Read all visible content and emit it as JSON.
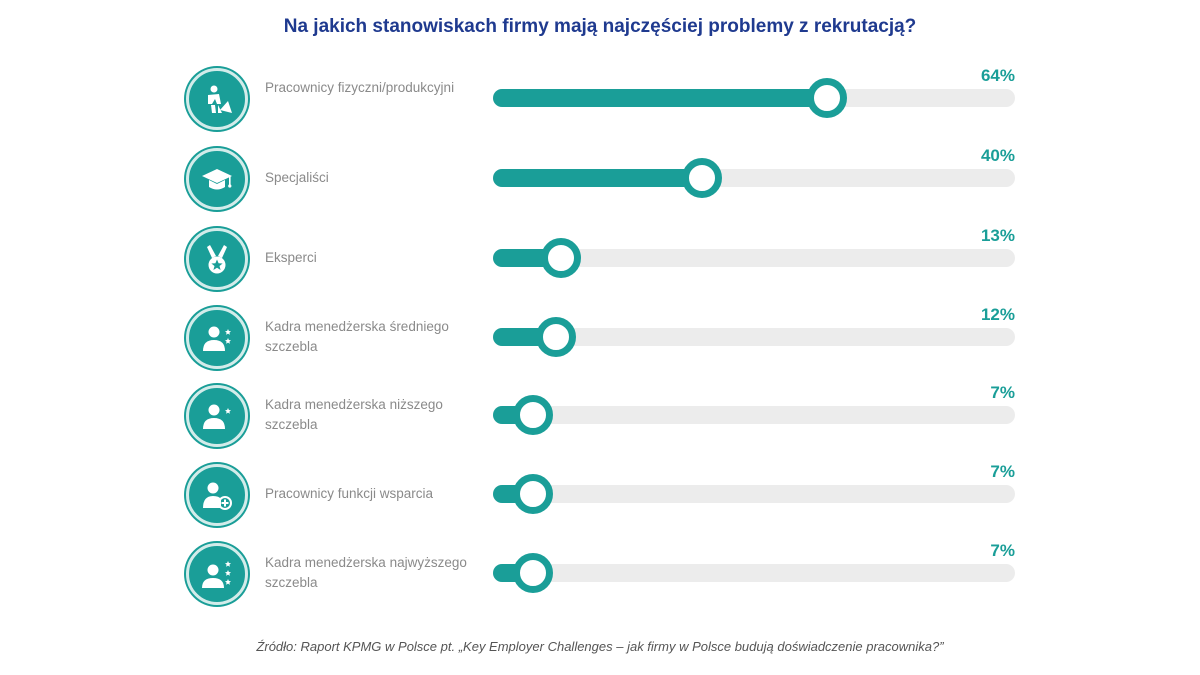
{
  "colors": {
    "accent": "#1a9e98",
    "title": "#1f3a8f",
    "track": "#ececec",
    "label": "#8a8a8a"
  },
  "chart_data": {
    "type": "bar",
    "orientation": "horizontal",
    "title": "Na jakich stanowiskach firmy mają najczęściej problemy z rekrutacją?",
    "categories": [
      "Pracownicy fizyczni/produkcyjni",
      "Specjaliści",
      "Eksperci",
      "Kadra menedżerska średniego szczebla",
      "Kadra menedżerska niższego szczebla",
      "Pracownicy funkcji wsparcia",
      "Kadra menedżerska najwyższego szczebla"
    ],
    "values": [
      64,
      40,
      13,
      12,
      7,
      7,
      7
    ],
    "value_labels": [
      "64%",
      "40%",
      "13%",
      "12%",
      "7%",
      "7%",
      "7%"
    ],
    "icons": [
      "worker-shovel-icon",
      "graduation-cap-icon",
      "medal-icon",
      "manager-one-star-icon",
      "manager-star-icon",
      "person-plus-icon",
      "manager-three-stars-icon"
    ],
    "xlim": [
      0,
      100
    ]
  },
  "source": "Źródło: Raport KPMG w Polsce pt. „Key Employer Challenges – jak firmy w Polsce budują doświadczenie pracownika?”"
}
